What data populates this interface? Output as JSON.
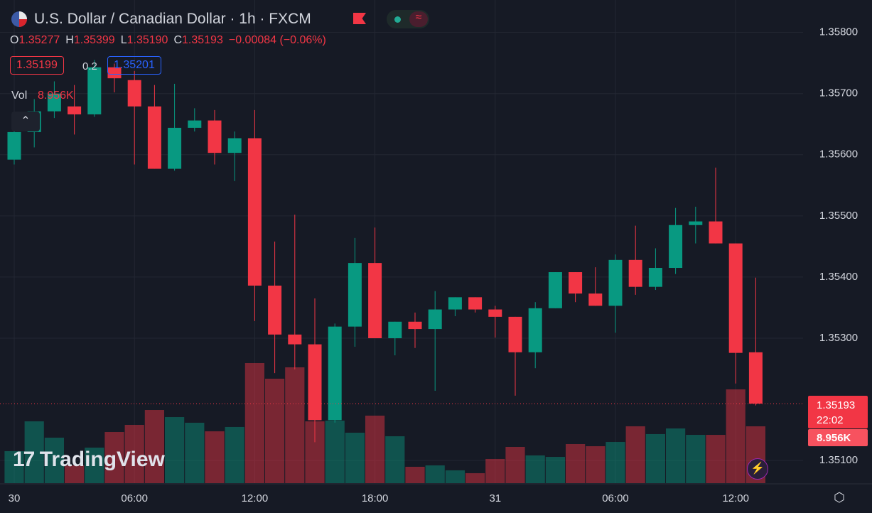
{
  "header": {
    "title": "U.S. Dollar / Canadian Dollar · 1h · FXCM",
    "ohlc": [
      {
        "key": "O",
        "value": "1.35277"
      },
      {
        "key": "H",
        "value": "1.35399"
      },
      {
        "key": "L",
        "value": "1.35190"
      },
      {
        "key": "C",
        "value": "1.35193"
      }
    ],
    "change": "−0.00084 (−0.06%)",
    "bid": "1.35199",
    "spread": "0.2",
    "ask": "1.35201",
    "volume_label": "Vol",
    "volume_value": "8.956K"
  },
  "price_tag": {
    "price": "1.35193",
    "countdown": "22:02",
    "volume": "8.956K"
  },
  "watermark": "TradingView",
  "chart_data": {
    "type": "candlestick",
    "categories": [
      "30",
      null,
      null,
      null,
      null,
      null,
      "06:00",
      null,
      null,
      null,
      null,
      null,
      "12:00",
      null,
      null,
      null,
      null,
      null,
      "18:00",
      null,
      null,
      null,
      null,
      null,
      "31",
      null,
      null,
      null,
      null,
      null,
      "06:00",
      null,
      null,
      null,
      null,
      null,
      "12:00",
      null
    ],
    "open": [
      1.35592,
      1.35637,
      1.35671,
      1.35679,
      1.35666,
      1.35743,
      1.35722,
      1.35679,
      1.35577,
      1.35644,
      1.35656,
      1.35603,
      1.35627,
      1.35386,
      1.35306,
      1.3529,
      1.35166,
      1.35319,
      1.35423,
      1.353,
      1.35327,
      1.35315,
      1.35347,
      1.35367,
      1.35347,
      1.35335,
      1.35277,
      1.35349,
      1.35408,
      1.35373,
      1.35353,
      1.35428,
      1.35384,
      1.35415,
      1.35485,
      1.35491,
      1.35455,
      1.35277
    ],
    "high": [
      1.35667,
      1.35691,
      1.3572,
      1.35714,
      1.35755,
      1.35749,
      1.35737,
      1.35714,
      1.35716,
      1.35676,
      1.35673,
      1.35638,
      1.35673,
      1.35458,
      1.35502,
      1.35365,
      1.35324,
      1.35464,
      1.35481,
      1.35327,
      1.35342,
      1.35377,
      1.35367,
      1.35367,
      1.35353,
      1.35335,
      1.35359,
      1.35408,
      1.35408,
      1.35416,
      1.35437,
      1.35484,
      1.35447,
      1.35513,
      1.35515,
      1.35579,
      1.35455,
      1.35399
    ],
    "low": [
      1.35584,
      1.35612,
      1.3566,
      1.35633,
      1.35662,
      1.35702,
      1.35584,
      1.35577,
      1.35574,
      1.35638,
      1.35584,
      1.35557,
      1.35328,
      1.35243,
      1.35249,
      1.3513,
      1.35162,
      1.35286,
      1.353,
      1.35272,
      1.35284,
      1.35214,
      1.35336,
      1.35342,
      1.35301,
      1.35206,
      1.35251,
      1.35349,
      1.35359,
      1.35353,
      1.35309,
      1.35371,
      1.35379,
      1.35405,
      1.35455,
      1.35455,
      1.35226,
      1.3519
    ],
    "close": [
      1.35637,
      1.35671,
      1.357,
      1.35666,
      1.35743,
      1.35725,
      1.35679,
      1.35577,
      1.35644,
      1.35656,
      1.35603,
      1.35627,
      1.35386,
      1.35306,
      1.3529,
      1.35166,
      1.35319,
      1.35423,
      1.353,
      1.35327,
      1.35315,
      1.35347,
      1.35367,
      1.35347,
      1.35335,
      1.35277,
      1.35349,
      1.35408,
      1.35373,
      1.35353,
      1.35428,
      1.35384,
      1.35415,
      1.35485,
      1.35491,
      1.35455,
      1.35276,
      1.35193
    ],
    "volume": [
      5.04,
      9.74,
      7.17,
      2.8,
      5.6,
      8.06,
      9.18,
      11.53,
      10.41,
      9.52,
      8.17,
      8.85,
      18.92,
      16.46,
      18.25,
      9.74,
      9.85,
      7.95,
      10.64,
      7.39,
      2.58,
      2.8,
      2.02,
      1.57,
      3.81,
      5.71,
      4.37,
      4.14,
      6.16,
      5.82,
      6.49,
      8.96,
      7.73,
      8.62,
      7.61,
      7.61,
      14.78,
      8.956
    ],
    "up_color": "#089981",
    "down_color": "#f23645",
    "ylim": [
      1.35063,
      1.35853
    ],
    "yticks": [
      {
        "value": 1.358,
        "label": "1.35800"
      },
      {
        "value": 1.357,
        "label": "1.35700"
      },
      {
        "value": 1.356,
        "label": "1.35600"
      },
      {
        "value": 1.355,
        "label": "1.35500"
      },
      {
        "value": 1.354,
        "label": "1.35400"
      },
      {
        "value": 1.353,
        "label": "1.35300"
      },
      {
        "value": 1.351,
        "label": "1.35100"
      }
    ],
    "grid": true
  }
}
